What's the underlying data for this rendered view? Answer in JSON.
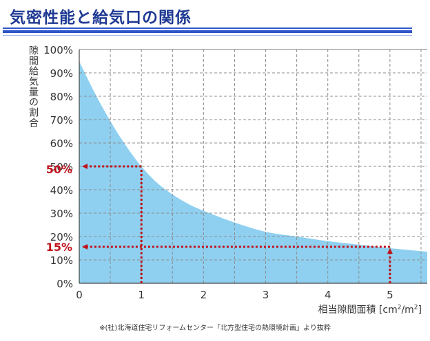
{
  "header": {
    "title": "気密性能と給気口の関係"
  },
  "colors": {
    "title": "#1f3a93",
    "fill": "#8fd0f0",
    "grid": "#8c8c8c",
    "marker": "#c0121b"
  },
  "source_note": "※(社)北海道住宅リフォームセンター「北方型住宅の熱環境計画」より抜粋",
  "chart_data": {
    "type": "area",
    "title": "気密性能と給気口の関係",
    "ylabel": "隙間給気量の割合",
    "xlabel": "相当隙間面積",
    "xlabel_unit_parts": [
      "[cm",
      "2",
      "/m",
      "2",
      "]"
    ],
    "xlim": [
      0,
      5.6
    ],
    "ylim": [
      0,
      100
    ],
    "x_ticks": [
      0,
      1,
      2,
      3,
      4,
      5
    ],
    "x_tick_labels": [
      "0",
      "1",
      "2",
      "3",
      "4",
      "5"
    ],
    "x_minor_grid": [
      0.5,
      1.5,
      2.5,
      3.5,
      4.5,
      5.5
    ],
    "y_ticks": [
      0,
      10,
      20,
      30,
      40,
      50,
      60,
      70,
      80,
      90,
      100
    ],
    "y_tick_labels": [
      "0%",
      "10%",
      "20%",
      "30%",
      "40%",
      "50%",
      "60%",
      "70%",
      "80%",
      "90%",
      "100%"
    ],
    "grid": true,
    "series": [
      {
        "x": [
          0,
          0.2,
          0.4,
          0.6,
          0.8,
          1,
          1.25,
          1.5,
          1.75,
          2,
          2.5,
          3,
          3.5,
          4,
          4.5,
          5,
          5.6
        ],
        "values": [
          95,
          84,
          74,
          65,
          57,
          50,
          43,
          38,
          34,
          31,
          26,
          22,
          20,
          18,
          16.5,
          15,
          13.5
        ]
      }
    ],
    "annotations": [
      {
        "label": "50%",
        "x": 1,
        "y": 50
      },
      {
        "label": "15%",
        "x": 5,
        "y": 15
      }
    ]
  }
}
